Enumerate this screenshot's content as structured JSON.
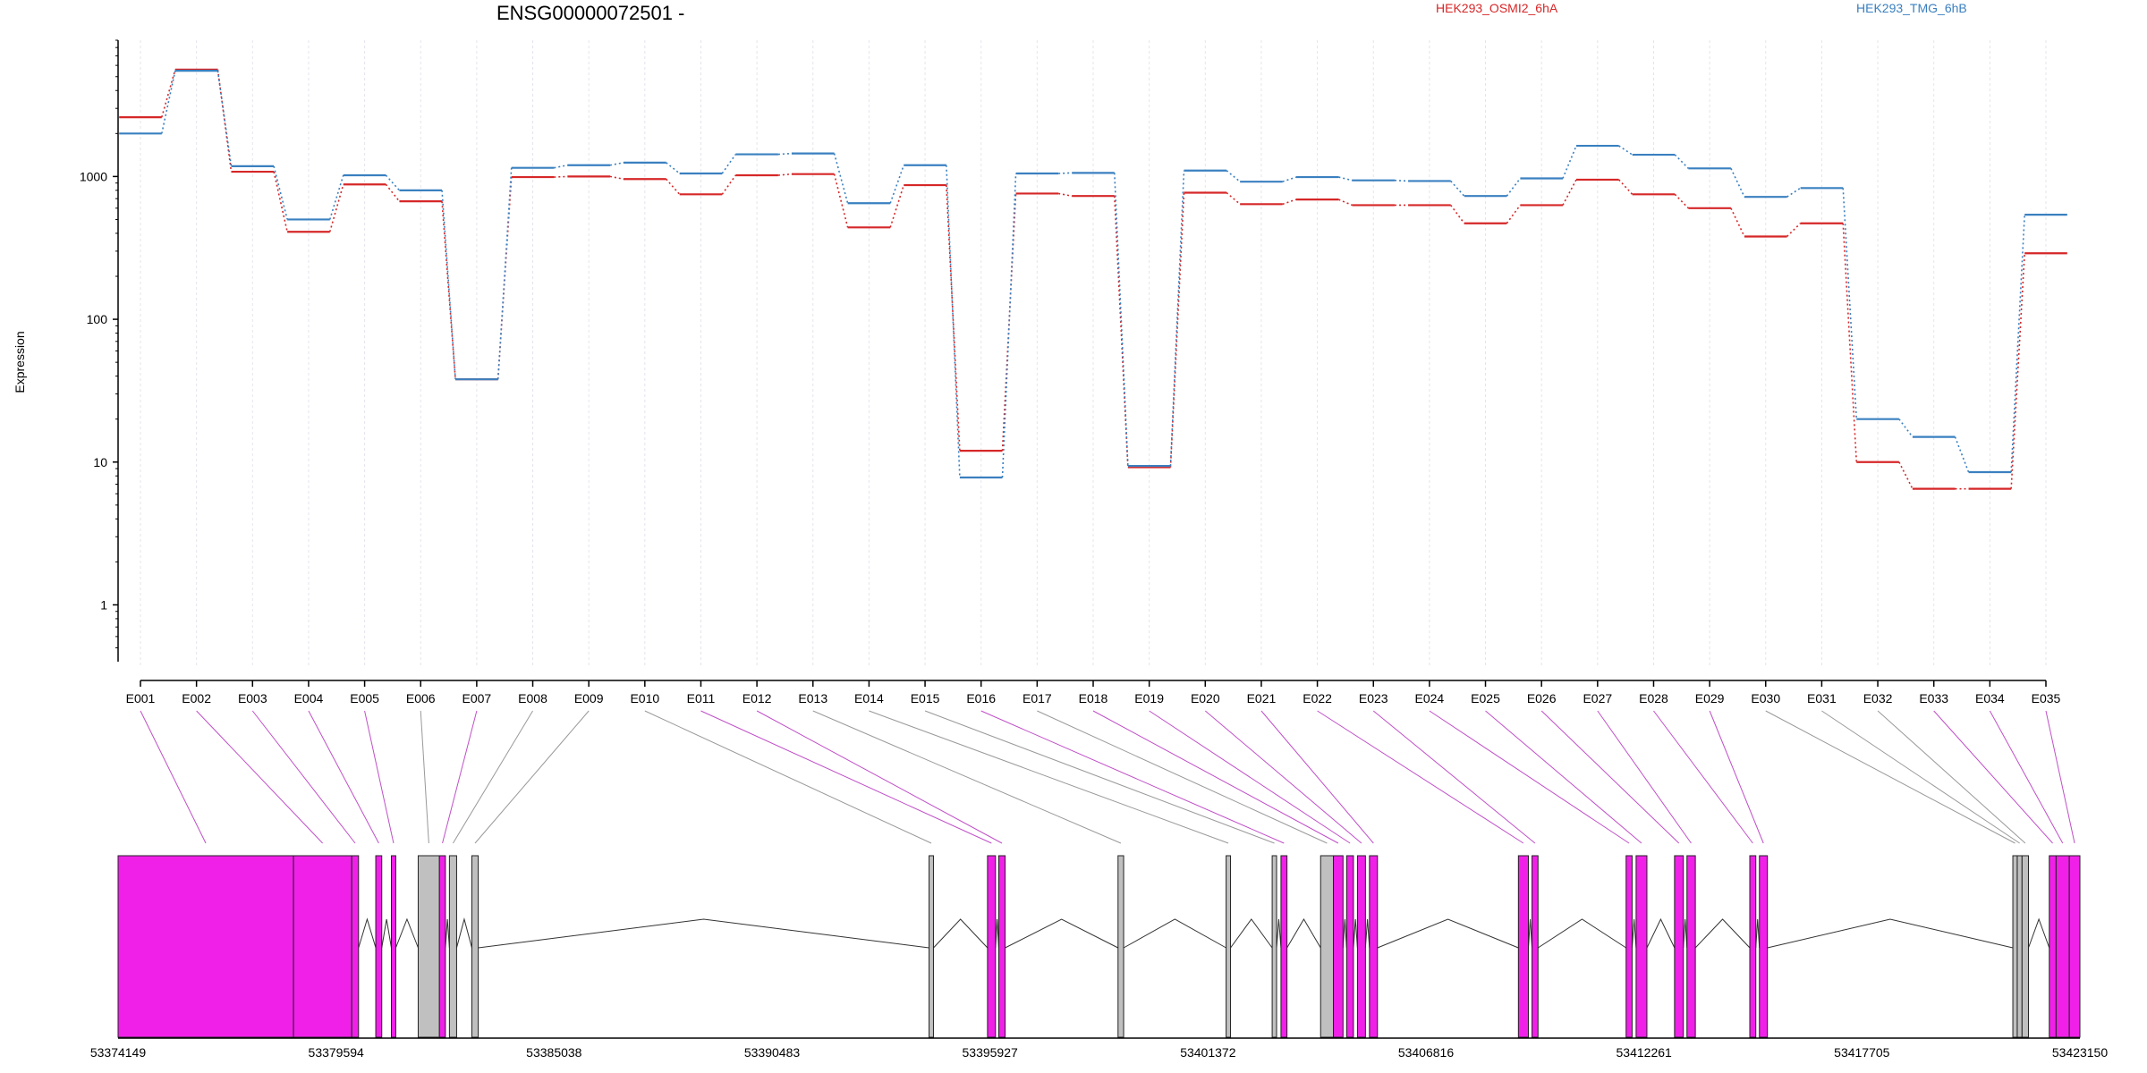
{
  "chart_data": {
    "type": "line",
    "title": "ENSG00000072501 -",
    "ylabel": "Expression",
    "xlabel": "",
    "yscale": "log",
    "ylim": [
      0.4,
      9000
    ],
    "yticks": [
      1,
      10,
      100,
      1000
    ],
    "grid": "vertical dashed",
    "legend_placement": "top",
    "categories": [
      "E001",
      "E002",
      "E003",
      "E004",
      "E005",
      "E006",
      "E007",
      "E008",
      "E009",
      "E010",
      "E011",
      "E012",
      "E013",
      "E014",
      "E015",
      "E016",
      "E017",
      "E018",
      "E019",
      "E020",
      "E021",
      "E022",
      "E023",
      "E024",
      "E025",
      "E026",
      "E027",
      "E028",
      "E029",
      "E030",
      "E031",
      "E032",
      "E033",
      "E034",
      "E035"
    ],
    "series": [
      {
        "name": "HEK293_OSMI2_6hA",
        "color": "#d62728",
        "values": [
          2600,
          5600,
          1080,
          410,
          880,
          670,
          38,
          990,
          1000,
          960,
          750,
          1020,
          1040,
          440,
          870,
          12,
          760,
          730,
          9.2,
          770,
          640,
          690,
          630,
          630,
          470,
          630,
          950,
          750,
          600,
          380,
          470,
          10,
          6.5,
          6.5,
          290
        ]
      },
      {
        "name": "HEK293_TMG_6hB",
        "color": "#3a80c0",
        "values": [
          2000,
          5500,
          1180,
          500,
          1020,
          800,
          38,
          1150,
          1200,
          1250,
          1050,
          1430,
          1450,
          650,
          1200,
          7.8,
          1050,
          1060,
          9.4,
          1100,
          920,
          990,
          940,
          930,
          730,
          970,
          1640,
          1420,
          1140,
          720,
          830,
          20,
          15,
          8.5,
          540
        ]
      }
    ],
    "gene_model": {
      "coordinates": [
        "53374149",
        "53379594",
        "53385038",
        "53390483",
        "53395927",
        "53401372",
        "53406816",
        "53412261",
        "53417705",
        "53423150"
      ],
      "exons": [
        {
          "id": "E001",
          "start": 53374149,
          "end": 53378530,
          "color": "#f020e8"
        },
        {
          "id": "E002",
          "start": 53378530,
          "end": 53379985,
          "color": "#f020e8"
        },
        {
          "id": "E003",
          "start": 53379985,
          "end": 53380155,
          "color": "#f020e8"
        },
        {
          "id": "E004",
          "start": 53380585,
          "end": 53380735,
          "color": "#f020e8"
        },
        {
          "id": "E005",
          "start": 53380975,
          "end": 53381085,
          "color": "#f020e8"
        },
        {
          "id": "E006",
          "start": 53381645,
          "end": 53382175,
          "color": "#c0c0c0"
        },
        {
          "id": "E007",
          "start": 53382175,
          "end": 53382325,
          "color": "#f020e8"
        },
        {
          "id": "E008",
          "start": 53382425,
          "end": 53382605,
          "color": "#c0c0c0"
        },
        {
          "id": "E009",
          "start": 53382985,
          "end": 53383145,
          "color": "#c0c0c0"
        },
        {
          "id": "E010",
          "start": 53394405,
          "end": 53394515,
          "color": "#c0c0c0"
        },
        {
          "id": "E011",
          "start": 53395865,
          "end": 53396065,
          "color": "#f020e8"
        },
        {
          "id": "E012",
          "start": 53396145,
          "end": 53396305,
          "color": "#f020e8"
        },
        {
          "id": "E013",
          "start": 53399125,
          "end": 53399265,
          "color": "#c0c0c0"
        },
        {
          "id": "E014",
          "start": 53401825,
          "end": 53401935,
          "color": "#c0c0c0"
        },
        {
          "id": "E015",
          "start": 53402975,
          "end": 53403085,
          "color": "#c0c0c0"
        },
        {
          "id": "E016",
          "start": 53403195,
          "end": 53403345,
          "color": "#f020e8"
        },
        {
          "id": "E017",
          "start": 53404185,
          "end": 53404505,
          "color": "#c0c0c0"
        },
        {
          "id": "E018",
          "start": 53404505,
          "end": 53404745,
          "color": "#f020e8"
        },
        {
          "id": "E019",
          "start": 53404835,
          "end": 53405005,
          "color": "#f020e8"
        },
        {
          "id": "E020",
          "start": 53405105,
          "end": 53405305,
          "color": "#f020e8"
        },
        {
          "id": "E021",
          "start": 53405405,
          "end": 53405605,
          "color": "#f020e8"
        },
        {
          "id": "E022",
          "start": 53409125,
          "end": 53409375,
          "color": "#f020e8"
        },
        {
          "id": "E023",
          "start": 53409465,
          "end": 53409615,
          "color": "#f020e8"
        },
        {
          "id": "E024",
          "start": 53411815,
          "end": 53411965,
          "color": "#f020e8"
        },
        {
          "id": "E025",
          "start": 53412065,
          "end": 53412335,
          "color": "#f020e8"
        },
        {
          "id": "E026",
          "start": 53413025,
          "end": 53413245,
          "color": "#f020e8"
        },
        {
          "id": "E027",
          "start": 53413335,
          "end": 53413545,
          "color": "#f020e8"
        },
        {
          "id": "E028",
          "start": 53414905,
          "end": 53415055,
          "color": "#f020e8"
        },
        {
          "id": "E029",
          "start": 53415145,
          "end": 53415345,
          "color": "#f020e8"
        },
        {
          "id": "E030",
          "start": 53421475,
          "end": 53421585,
          "color": "#c0c0c0"
        },
        {
          "id": "E031",
          "start": 53421585,
          "end": 53421705,
          "color": "#c0c0c0"
        },
        {
          "id": "E032",
          "start": 53421705,
          "end": 53421865,
          "color": "#c0c0c0"
        },
        {
          "id": "E033",
          "start": 53422385,
          "end": 53422555,
          "color": "#f020e8"
        },
        {
          "id": "E034",
          "start": 53422555,
          "end": 53422885,
          "color": "#f020e8"
        },
        {
          "id": "E035",
          "start": 53422885,
          "end": 53423150,
          "color": "#f020e8"
        }
      ]
    }
  }
}
